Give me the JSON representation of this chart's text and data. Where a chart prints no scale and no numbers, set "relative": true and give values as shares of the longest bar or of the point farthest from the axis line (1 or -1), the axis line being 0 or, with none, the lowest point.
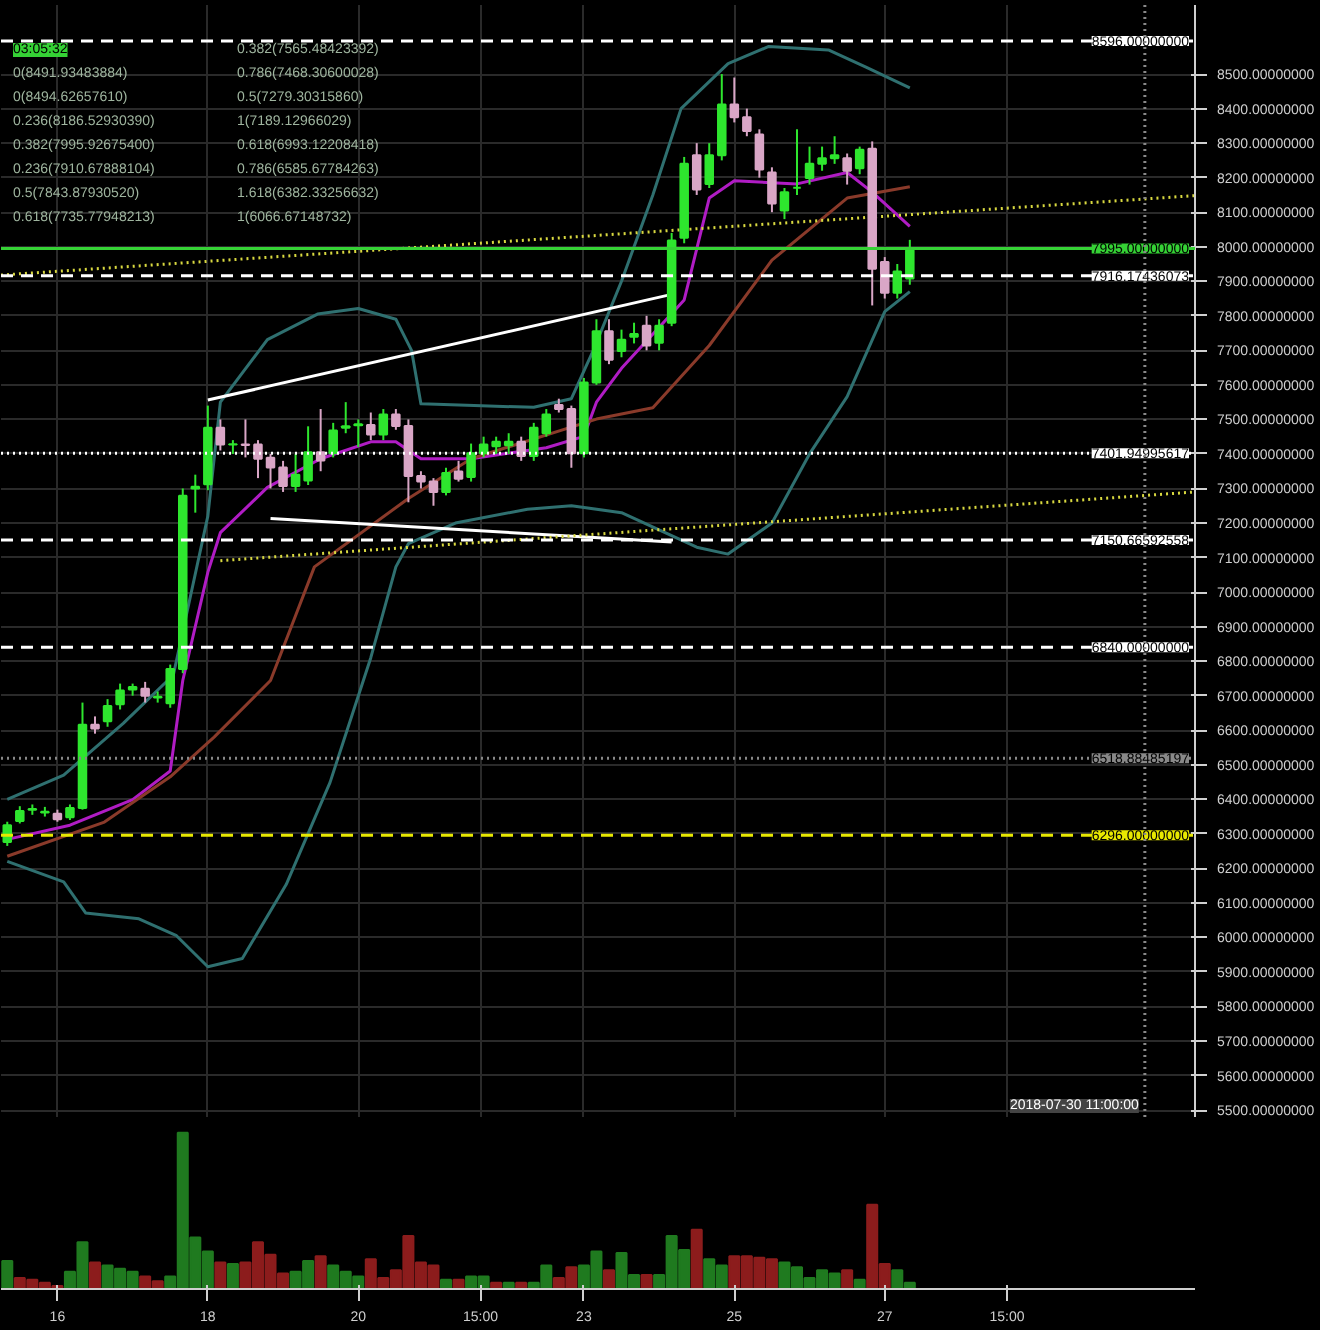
{
  "chart_data": [
    {
      "type": "candlestick",
      "x": [
        "2018-07-15T08:00",
        "2018-07-15T12:00",
        "2018-07-15T16:00",
        "2018-07-15T20:00",
        "2018-07-16T00:00",
        "2018-07-16T04:00",
        "2018-07-16T08:00",
        "2018-07-16T12:00",
        "2018-07-16T16:00",
        "2018-07-16T20:00",
        "2018-07-17T00:00",
        "2018-07-17T04:00",
        "2018-07-17T08:00",
        "2018-07-17T12:00",
        "2018-07-17T16:00",
        "2018-07-17T20:00",
        "2018-07-18T00:00",
        "2018-07-18T04:00",
        "2018-07-18T08:00",
        "2018-07-18T12:00",
        "2018-07-18T16:00",
        "2018-07-18T20:00",
        "2018-07-19T00:00",
        "2018-07-19T04:00",
        "2018-07-19T08:00",
        "2018-07-19T12:00",
        "2018-07-19T16:00",
        "2018-07-19T20:00",
        "2018-07-20T00:00",
        "2018-07-20T04:00",
        "2018-07-20T08:00",
        "2018-07-20T12:00",
        "2018-07-20T16:00",
        "2018-07-20T20:00",
        "2018-07-21T00:00",
        "2018-07-21T04:00",
        "2018-07-21T08:00",
        "2018-07-21T12:00",
        "2018-07-21T16:00",
        "2018-07-21T20:00",
        "2018-07-22T00:00",
        "2018-07-22T04:00",
        "2018-07-22T08:00",
        "2018-07-22T12:00",
        "2018-07-22T16:00",
        "2018-07-22T20:00",
        "2018-07-23T00:00",
        "2018-07-23T04:00",
        "2018-07-23T08:00",
        "2018-07-23T12:00",
        "2018-07-23T16:00",
        "2018-07-23T20:00",
        "2018-07-24T00:00",
        "2018-07-24T04:00",
        "2018-07-24T08:00",
        "2018-07-24T12:00",
        "2018-07-24T16:00",
        "2018-07-24T20:00",
        "2018-07-25T00:00",
        "2018-07-25T04:00",
        "2018-07-25T08:00",
        "2018-07-25T12:00",
        "2018-07-25T16:00",
        "2018-07-25T20:00",
        "2018-07-26T00:00",
        "2018-07-26T04:00",
        "2018-07-26T08:00",
        "2018-07-26T12:00",
        "2018-07-26T16:00",
        "2018-07-26T20:00",
        "2018-07-27T00:00",
        "2018-07-27T04:00",
        "2018-07-27T08:00"
      ],
      "ohlc": [
        [
          6276,
          6335,
          6265,
          6325
        ],
        [
          6337,
          6380,
          6330,
          6366
        ],
        [
          6370,
          6385,
          6355,
          6372
        ],
        [
          6362,
          6378,
          6350,
          6364
        ],
        [
          6358,
          6370,
          6335,
          6342
        ],
        [
          6348,
          6385,
          6340,
          6375
        ],
        [
          6375,
          6680,
          6370,
          6616
        ],
        [
          6616,
          6640,
          6590,
          6605
        ],
        [
          6626,
          6690,
          6610,
          6670
        ],
        [
          6675,
          6735,
          6660,
          6715
        ],
        [
          6718,
          6735,
          6700,
          6725
        ],
        [
          6720,
          6740,
          6680,
          6700
        ],
        [
          6695,
          6712,
          6680,
          6697
        ],
        [
          6678,
          6790,
          6665,
          6777
        ],
        [
          6777,
          7300,
          6765,
          7279
        ],
        [
          7300,
          7340,
          7230,
          7305
        ],
        [
          7312,
          7540,
          7295,
          7476
        ],
        [
          7476,
          7500,
          7410,
          7427
        ],
        [
          7427,
          7440,
          7400,
          7428
        ],
        [
          7427,
          7500,
          7390,
          7426
        ],
        [
          7427,
          7440,
          7330,
          7386
        ],
        [
          7389,
          7400,
          7300,
          7361
        ],
        [
          7361,
          7380,
          7290,
          7307
        ],
        [
          7307,
          7400,
          7290,
          7340
        ],
        [
          7323,
          7480,
          7310,
          7405
        ],
        [
          7405,
          7530,
          7350,
          7381
        ],
        [
          7402,
          7490,
          7390,
          7468
        ],
        [
          7476,
          7550,
          7460,
          7480
        ],
        [
          7483,
          7500,
          7420,
          7486
        ],
        [
          7484,
          7520,
          7440,
          7456
        ],
        [
          7456,
          7530,
          7440,
          7514
        ],
        [
          7514,
          7530,
          7470,
          7481
        ],
        [
          7481,
          7500,
          7260,
          7336
        ],
        [
          7336,
          7350,
          7300,
          7320
        ],
        [
          7320,
          7330,
          7250,
          7290
        ],
        [
          7290,
          7360,
          7280,
          7345
        ],
        [
          7349,
          7380,
          7320,
          7328
        ],
        [
          7333,
          7430,
          7320,
          7402
        ],
        [
          7402,
          7450,
          7390,
          7427
        ],
        [
          7422,
          7450,
          7400,
          7435
        ],
        [
          7425,
          7460,
          7400,
          7435
        ],
        [
          7435,
          7450,
          7380,
          7394
        ],
        [
          7394,
          7490,
          7380,
          7476
        ],
        [
          7460,
          7530,
          7450,
          7514
        ],
        [
          7542,
          7560,
          7520,
          7530
        ],
        [
          7530,
          7540,
          7360,
          7402
        ],
        [
          7402,
          7620,
          7390,
          7607
        ],
        [
          7607,
          7790,
          7600,
          7755
        ],
        [
          7755,
          7790,
          7660,
          7673
        ],
        [
          7698,
          7760,
          7680,
          7731
        ],
        [
          7739,
          7780,
          7720,
          7747
        ],
        [
          7771,
          7800,
          7700,
          7714
        ],
        [
          7722,
          7790,
          7700,
          7771
        ],
        [
          7780,
          8040,
          7770,
          8018
        ],
        [
          8026,
          8260,
          8010,
          8240
        ],
        [
          8265,
          8300,
          8150,
          8166
        ],
        [
          8182,
          8300,
          8170,
          8265
        ],
        [
          8265,
          8500,
          8250,
          8412
        ],
        [
          8412,
          8490,
          8360,
          8375
        ],
        [
          8375,
          8400,
          8320,
          8335
        ],
        [
          8325,
          8340,
          8200,
          8224
        ],
        [
          8215,
          8230,
          8100,
          8125
        ],
        [
          8105,
          8170,
          8080,
          8158
        ],
        [
          8171,
          8340,
          8150,
          8171
        ],
        [
          8199,
          8290,
          8180,
          8240
        ],
        [
          8240,
          8290,
          8220,
          8256
        ],
        [
          8256,
          8320,
          8240,
          8265
        ],
        [
          8256,
          8270,
          8180,
          8220
        ],
        [
          8227,
          8290,
          8210,
          8281
        ],
        [
          8284,
          8305,
          7830,
          7936
        ],
        [
          7956,
          7970,
          7850,
          7867
        ],
        [
          7867,
          7950,
          7850,
          7928
        ],
        [
          7908,
          8020,
          7890,
          7990
        ]
      ],
      "colors": [
        "#2ee62e",
        "#2ee62e",
        "#2ee62e",
        "#2ee62e",
        "#d9a6c6",
        "#2ee62e",
        "#2ee62e",
        "#d9a6c6",
        "#2ee62e",
        "#2ee62e",
        "#2ee62e",
        "#d9a6c6",
        "#2ee62e",
        "#2ee62e",
        "#2ee62e",
        "#2ee62e",
        "#2ee62e",
        "#d9a6c6",
        "#2ee62e",
        "#d9a6c6",
        "#d9a6c6",
        "#d9a6c6",
        "#d9a6c6",
        "#2ee62e",
        "#2ee62e",
        "#d9a6c6",
        "#2ee62e",
        "#2ee62e",
        "#2ee62e",
        "#d9a6c6",
        "#2ee62e",
        "#d9a6c6",
        "#d9a6c6",
        "#d9a6c6",
        "#d9a6c6",
        "#2ee62e",
        "#d9a6c6",
        "#2ee62e",
        "#2ee62e",
        "#2ee62e",
        "#2ee62e",
        "#d9a6c6",
        "#2ee62e",
        "#2ee62e",
        "#d9a6c6",
        "#d9a6c6",
        "#2ee62e",
        "#2ee62e",
        "#d9a6c6",
        "#2ee62e",
        "#2ee62e",
        "#d9a6c6",
        "#2ee62e",
        "#2ee62e",
        "#2ee62e",
        "#d9a6c6",
        "#2ee62e",
        "#2ee62e",
        "#d9a6c6",
        "#d9a6c6",
        "#d9a6c6",
        "#d9a6c6",
        "#2ee62e",
        "#2ee62e",
        "#2ee62e",
        "#2ee62e",
        "#2ee62e",
        "#d9a6c6",
        "#2ee62e",
        "#d9a6c6",
        "#d9a6c6",
        "#2ee62e",
        "#2ee62e"
      ],
      "series": [
        {
          "type": "line",
          "color": "#2f7070",
          "x": [
            "2018-07-15T08:00",
            "2018-07-16T02:00",
            "2018-07-16T21:00",
            "2018-07-17T13:00",
            "2018-07-18T00:00",
            "2018-07-18T04:00",
            "2018-07-18T19:00",
            "2018-07-19T11:00",
            "2018-07-20T00:00",
            "2018-07-20T12:00",
            "2018-07-20T17:00",
            "2018-07-20T20:00",
            "2018-07-21T13:00",
            "2018-07-22T08:00",
            "2018-07-22T20:00",
            "2018-07-23T03:00",
            "2018-07-23T12:00",
            "2018-07-23T22:00",
            "2018-07-24T07:00",
            "2018-07-24T22:00",
            "2018-07-25T11:00",
            "2018-07-26T06:00",
            "2018-07-26T18:00",
            "2018-07-27T08:00"
          ],
          "values": [
            6400,
            6470,
            6620,
            6760,
            7220,
            7550,
            7731,
            7805,
            7821,
            7790,
            7700,
            7545,
            7540,
            7535,
            7560,
            7700,
            7900,
            8150,
            8400,
            8530,
            8580,
            8570,
            8520,
            8460
          ]
        },
        {
          "type": "line",
          "color": "#2f7070",
          "x": [
            "2018-07-15T08:00",
            "2018-07-16T02:00",
            "2018-07-16T09:00",
            "2018-07-17T02:00",
            "2018-07-17T14:00",
            "2018-07-18T00:00",
            "2018-07-18T11:00",
            "2018-07-19T01:00",
            "2018-07-19T15:00",
            "2018-07-20T04:00",
            "2018-07-20T12:00",
            "2018-07-20T16:00",
            "2018-07-21T07:00",
            "2018-07-22T06:00",
            "2018-07-22T20:00",
            "2018-07-23T12:00",
            "2018-07-24T00:00",
            "2018-07-24T12:00",
            "2018-07-24T22:00",
            "2018-07-25T12:00",
            "2018-07-26T00:00",
            "2018-07-26T12:00",
            "2018-07-27T00:00",
            "2018-07-27T08:00"
          ],
          "values": [
            6220,
            6161,
            6071,
            6054,
            6005,
            5915,
            5939,
            6153,
            6449,
            6810,
            7073,
            7140,
            7200,
            7240,
            7250,
            7230,
            7180,
            7130,
            7110,
            7200,
            7400,
            7566,
            7812,
            7870
          ]
        },
        {
          "type": "line",
          "color": "#b01cc4",
          "x": [
            "2018-07-15T08:00",
            "2018-07-16T04:00",
            "2018-07-17T00:00",
            "2018-07-17T12:00",
            "2018-07-17T16:00",
            "2018-07-18T00:00",
            "2018-07-18T04:00",
            "2018-07-18T19:00",
            "2018-07-19T12:00",
            "2018-07-20T04:00",
            "2018-07-20T12:00",
            "2018-07-20T20:00",
            "2018-07-21T12:00",
            "2018-07-22T12:00",
            "2018-07-23T00:00",
            "2018-07-23T04:00",
            "2018-07-23T12:00",
            "2018-07-24T08:00",
            "2018-07-24T16:00",
            "2018-07-25T00:00",
            "2018-07-25T20:00",
            "2018-07-26T12:00",
            "2018-07-26T20:00",
            "2018-07-27T08:00"
          ],
          "values": [
            6284,
            6325,
            6399,
            6482,
            6744,
            7057,
            7172,
            7303,
            7386,
            7435,
            7435,
            7386,
            7386,
            7418,
            7451,
            7550,
            7648,
            7846,
            8141,
            8191,
            8182,
            8215,
            8158,
            8059
          ]
        },
        {
          "type": "line",
          "color": "#8a3a2a",
          "x": [
            "2018-07-15T08:00",
            "2018-07-16T15:00",
            "2018-07-17T12:00",
            "2018-07-18T02:00",
            "2018-07-18T20:00",
            "2018-07-19T10:00",
            "2018-07-20T16:00",
            "2018-07-21T12:00",
            "2018-07-23T04:00",
            "2018-07-23T22:00",
            "2018-07-24T16:00",
            "2018-07-25T12:00",
            "2018-07-26T12:00",
            "2018-07-27T08:00"
          ],
          "values": [
            6235,
            6334,
            6465,
            6580,
            6744,
            7073,
            7271,
            7386,
            7501,
            7534,
            7714,
            7961,
            8141,
            8174
          ]
        },
        {
          "type": "line",
          "color": "#ffffff",
          "x": [
            "2018-07-18T00:00",
            "2018-07-24T04:00"
          ],
          "values": [
            7556,
            7862
          ]
        },
        {
          "type": "line",
          "color": "#ffffff",
          "x": [
            "2018-07-18T20:00",
            "2018-07-24T04:00"
          ],
          "values": [
            7213,
            7145
          ]
        },
        {
          "type": "line",
          "color": "#d8d840",
          "line_style": "dotted",
          "x": [
            "2018-07-15T06:00",
            "2018-07-31T03:00"
          ],
          "values": [
            7918,
            8148
          ]
        },
        {
          "type": "line",
          "color": "#d8d840",
          "line_style": "dotted",
          "x": [
            "2018-07-18T04:00",
            "2018-07-31T03:00"
          ],
          "values": [
            7091,
            7290
          ]
        }
      ],
      "xlim": [
        "2018-07-15T06:00",
        "2018-07-31T03:00"
      ],
      "xticks": [
        {
          "value": "2018-07-16T00:00",
          "label": null
        },
        {
          "value": "2018-07-18T00:00",
          "label": null
        },
        {
          "value": "2018-07-20T00:00",
          "label": null
        },
        {
          "value": "2018-07-21T15:00",
          "label": null
        },
        {
          "value": "2018-07-23T00:00",
          "label": null
        },
        {
          "value": "2018-07-25T00:00",
          "label": null
        },
        {
          "value": "2018-07-27T00:00",
          "label": null
        },
        {
          "value": "2018-07-28T15:00",
          "label": null
        }
      ],
      "tick_labels": "y",
      "ylim": [
        5480,
        8700
      ],
      "yticks": [
        {
          "value": 5500,
          "label": "5500.00000000"
        },
        {
          "value": 5600,
          "label": "5600.00000000"
        },
        {
          "value": 5700,
          "label": "5700.00000000"
        },
        {
          "value": 5800,
          "label": "5800.00000000"
        },
        {
          "value": 5900,
          "label": "5900.00000000"
        },
        {
          "value": 6000,
          "label": "6000.00000000"
        },
        {
          "value": 6100,
          "label": "6100.00000000"
        },
        {
          "value": 6200,
          "label": "6200.00000000"
        },
        {
          "value": 6300,
          "label": "6300.00000000"
        },
        {
          "value": 6400,
          "label": "6400.00000000"
        },
        {
          "value": 6500,
          "label": "6500.00000000"
        },
        {
          "value": 6600,
          "label": "6600.00000000"
        },
        {
          "value": 6700,
          "label": "6700.00000000"
        },
        {
          "value": 6800,
          "label": "6800.00000000"
        },
        {
          "value": 6900,
          "label": "6900.00000000"
        },
        {
          "value": 7000,
          "label": "7000.00000000"
        },
        {
          "value": 7100,
          "label": "7100.00000000"
        },
        {
          "value": 7200,
          "label": "7200.00000000"
        },
        {
          "value": 7300,
          "label": "7300.00000000"
        },
        {
          "value": 7400,
          "label": "7400.00000000"
        },
        {
          "value": 7500,
          "label": "7500.00000000"
        },
        {
          "value": 7600,
          "label": "7600.00000000"
        },
        {
          "value": 7700,
          "label": "7700.00000000"
        },
        {
          "value": 7800,
          "label": "7800.00000000"
        },
        {
          "value": 7900,
          "label": "7900.00000000"
        },
        {
          "value": 8000,
          "label": "8000.00000000"
        },
        {
          "value": 8100,
          "label": "8100.00000000"
        },
        {
          "value": 8200,
          "label": "8200.00000000"
        },
        {
          "value": 8300,
          "label": "8300.00000000"
        },
        {
          "value": 8400,
          "label": "8400.00000000"
        },
        {
          "value": 8500,
          "label": "8500.00000000"
        }
      ],
      "grid": true,
      "ref_lines": [
        {
          "axis": "y",
          "value": 8596,
          "label": "8596.00000000",
          "color": "#ffffff",
          "line_style": "dashed"
        },
        {
          "axis": "y",
          "value": 7995,
          "label": "7995.00000000",
          "color": "#35d235",
          "line_style": "solid"
        },
        {
          "axis": "y",
          "value": 7916.17436073,
          "label": "7916.17436073",
          "color": "#ffffff",
          "line_style": "dashed"
        },
        {
          "axis": "y",
          "value": 7401.94995617,
          "label": "7401.94995617",
          "color": "#ffffff",
          "line_style": "dotted"
        },
        {
          "axis": "y",
          "value": 7150.66592558,
          "label": "7150.66592558",
          "color": "#ffffff",
          "line_style": "dashed"
        },
        {
          "axis": "y",
          "value": 6840,
          "label": "6840.00000000",
          "color": "#ffffff",
          "line_style": "dashed"
        },
        {
          "axis": "y",
          "value": 6518.88485197,
          "label": "6518.88485197",
          "color": "#888888",
          "line_style": "dotted"
        },
        {
          "axis": "y",
          "value": 6296,
          "label": "6296.00000000",
          "color": "#e8e800",
          "line_style": "dashed"
        },
        {
          "axis": "x",
          "value": "2018-07-30T11:00",
          "label": "2018-07-30 11:00:00",
          "color": "#888888",
          "line_style": "dotted"
        }
      ],
      "annotations": [
        "03:05:32",
        "0(8491.93483884)",
        "0(8494.62657610)",
        "0.236(8186.52930390)",
        "0.382(7995.92675400)",
        "0.236(7910.67888104)",
        "0.5(7843.87930520)",
        "0.618(7735.77948213)",
        "0.382(7565.48423392)",
        "0.786(7468.30600028)",
        "0.5(7279.30315860)",
        "1(7189.12966029)",
        "0.618(6993.12208418)",
        "0.786(6585.67784263)",
        "1.618(6382.33256632)",
        "1(6066.67148732)"
      ]
    },
    {
      "type": "bar",
      "relative": true,
      "tick_labels": "x",
      "xlim": [
        "2018-07-15T06:00",
        "2018-07-31T03:00"
      ],
      "xticks": [
        {
          "value": "2018-07-16T00:00",
          "label": "16"
        },
        {
          "value": "2018-07-18T00:00",
          "label": "18"
        },
        {
          "value": "2018-07-20T00:00",
          "label": "20"
        },
        {
          "value": "2018-07-21T15:00",
          "label": "15:00"
        },
        {
          "value": "2018-07-23T00:00",
          "label": "23"
        },
        {
          "value": "2018-07-25T00:00",
          "label": "25"
        },
        {
          "value": "2018-07-27T00:00",
          "label": "27"
        },
        {
          "value": "2018-07-28T15:00",
          "label": "15:00"
        }
      ],
      "x": [
        "2018-07-15T08:00",
        "2018-07-15T12:00",
        "2018-07-15T16:00",
        "2018-07-15T20:00",
        "2018-07-16T00:00",
        "2018-07-16T04:00",
        "2018-07-16T08:00",
        "2018-07-16T12:00",
        "2018-07-16T16:00",
        "2018-07-16T20:00",
        "2018-07-17T00:00",
        "2018-07-17T04:00",
        "2018-07-17T08:00",
        "2018-07-17T12:00",
        "2018-07-17T16:00",
        "2018-07-17T20:00",
        "2018-07-18T00:00",
        "2018-07-18T04:00",
        "2018-07-18T08:00",
        "2018-07-18T12:00",
        "2018-07-18T16:00",
        "2018-07-18T20:00",
        "2018-07-19T00:00",
        "2018-07-19T04:00",
        "2018-07-19T08:00",
        "2018-07-19T12:00",
        "2018-07-19T16:00",
        "2018-07-19T20:00",
        "2018-07-20T00:00",
        "2018-07-20T04:00",
        "2018-07-20T08:00",
        "2018-07-20T12:00",
        "2018-07-20T16:00",
        "2018-07-20T20:00",
        "2018-07-21T00:00",
        "2018-07-21T04:00",
        "2018-07-21T08:00",
        "2018-07-21T12:00",
        "2018-07-21T16:00",
        "2018-07-21T20:00",
        "2018-07-22T00:00",
        "2018-07-22T04:00",
        "2018-07-22T08:00",
        "2018-07-22T12:00",
        "2018-07-22T16:00",
        "2018-07-22T20:00",
        "2018-07-23T00:00",
        "2018-07-23T04:00",
        "2018-07-23T08:00",
        "2018-07-23T12:00",
        "2018-07-23T16:00",
        "2018-07-23T20:00",
        "2018-07-24T00:00",
        "2018-07-24T04:00",
        "2018-07-24T08:00",
        "2018-07-24T12:00",
        "2018-07-24T16:00",
        "2018-07-24T20:00",
        "2018-07-25T00:00",
        "2018-07-25T04:00",
        "2018-07-25T08:00",
        "2018-07-25T12:00",
        "2018-07-25T16:00",
        "2018-07-25T20:00",
        "2018-07-26T00:00",
        "2018-07-26T04:00",
        "2018-07-26T08:00",
        "2018-07-26T12:00",
        "2018-07-26T16:00",
        "2018-07-26T20:00",
        "2018-07-27T00:00",
        "2018-07-27T04:00",
        "2018-07-27T08:00"
      ],
      "values": [
        0.18,
        0.07,
        0.06,
        0.04,
        0.02,
        0.11,
        0.3,
        0.17,
        0.15,
        0.13,
        0.11,
        0.08,
        0.05,
        0.08,
        1,
        0.33,
        0.24,
        0.17,
        0.16,
        0.17,
        0.3,
        0.22,
        0.1,
        0.11,
        0.18,
        0.21,
        0.15,
        0.11,
        0.08,
        0.19,
        0.07,
        0.12,
        0.34,
        0.17,
        0.15,
        0.06,
        0.06,
        0.08,
        0.08,
        0.04,
        0.04,
        0.04,
        0.04,
        0.15,
        0.07,
        0.14,
        0.15,
        0.24,
        0.12,
        0.23,
        0.09,
        0.09,
        0.09,
        0.34,
        0.25,
        0.38,
        0.19,
        0.15,
        0.21,
        0.21,
        0.2,
        0.19,
        0.17,
        0.14,
        0.07,
        0.12,
        0.1,
        0.12,
        0.06,
        0.54,
        0.16,
        0.12,
        0.04
      ],
      "colors": [
        "#1f7a1f",
        "#8c1c1c",
        "#8c1c1c",
        "#8c1c1c",
        "#8c1c1c",
        "#1f7a1f",
        "#1f7a1f",
        "#8c1c1c",
        "#1f7a1f",
        "#1f7a1f",
        "#1f7a1f",
        "#8c1c1c",
        "#8c1c1c",
        "#1f7a1f",
        "#1f7a1f",
        "#1f7a1f",
        "#1f7a1f",
        "#8c1c1c",
        "#1f7a1f",
        "#8c1c1c",
        "#8c1c1c",
        "#8c1c1c",
        "#8c1c1c",
        "#1f7a1f",
        "#1f7a1f",
        "#8c1c1c",
        "#1f7a1f",
        "#1f7a1f",
        "#1f7a1f",
        "#8c1c1c",
        "#8c1c1c",
        "#8c1c1c",
        "#8c1c1c",
        "#8c1c1c",
        "#8c1c1c",
        "#1f7a1f",
        "#8c1c1c",
        "#1f7a1f",
        "#1f7a1f",
        "#8c1c1c",
        "#1f7a1f",
        "#8c1c1c",
        "#1f7a1f",
        "#1f7a1f",
        "#8c1c1c",
        "#8c1c1c",
        "#1f7a1f",
        "#1f7a1f",
        "#8c1c1c",
        "#1f7a1f",
        "#1f7a1f",
        "#8c1c1c",
        "#1f7a1f",
        "#1f7a1f",
        "#1f7a1f",
        "#8c1c1c",
        "#1f7a1f",
        "#1f7a1f",
        "#8c1c1c",
        "#8c1c1c",
        "#8c1c1c",
        "#8c1c1c",
        "#1f7a1f",
        "#1f7a1f",
        "#1f7a1f",
        "#1f7a1f",
        "#1f7a1f",
        "#8c1c1c",
        "#1f7a1f",
        "#8c1c1c",
        "#8c1c1c",
        "#1f7a1f",
        "#1f7a1f"
      ]
    }
  ]
}
